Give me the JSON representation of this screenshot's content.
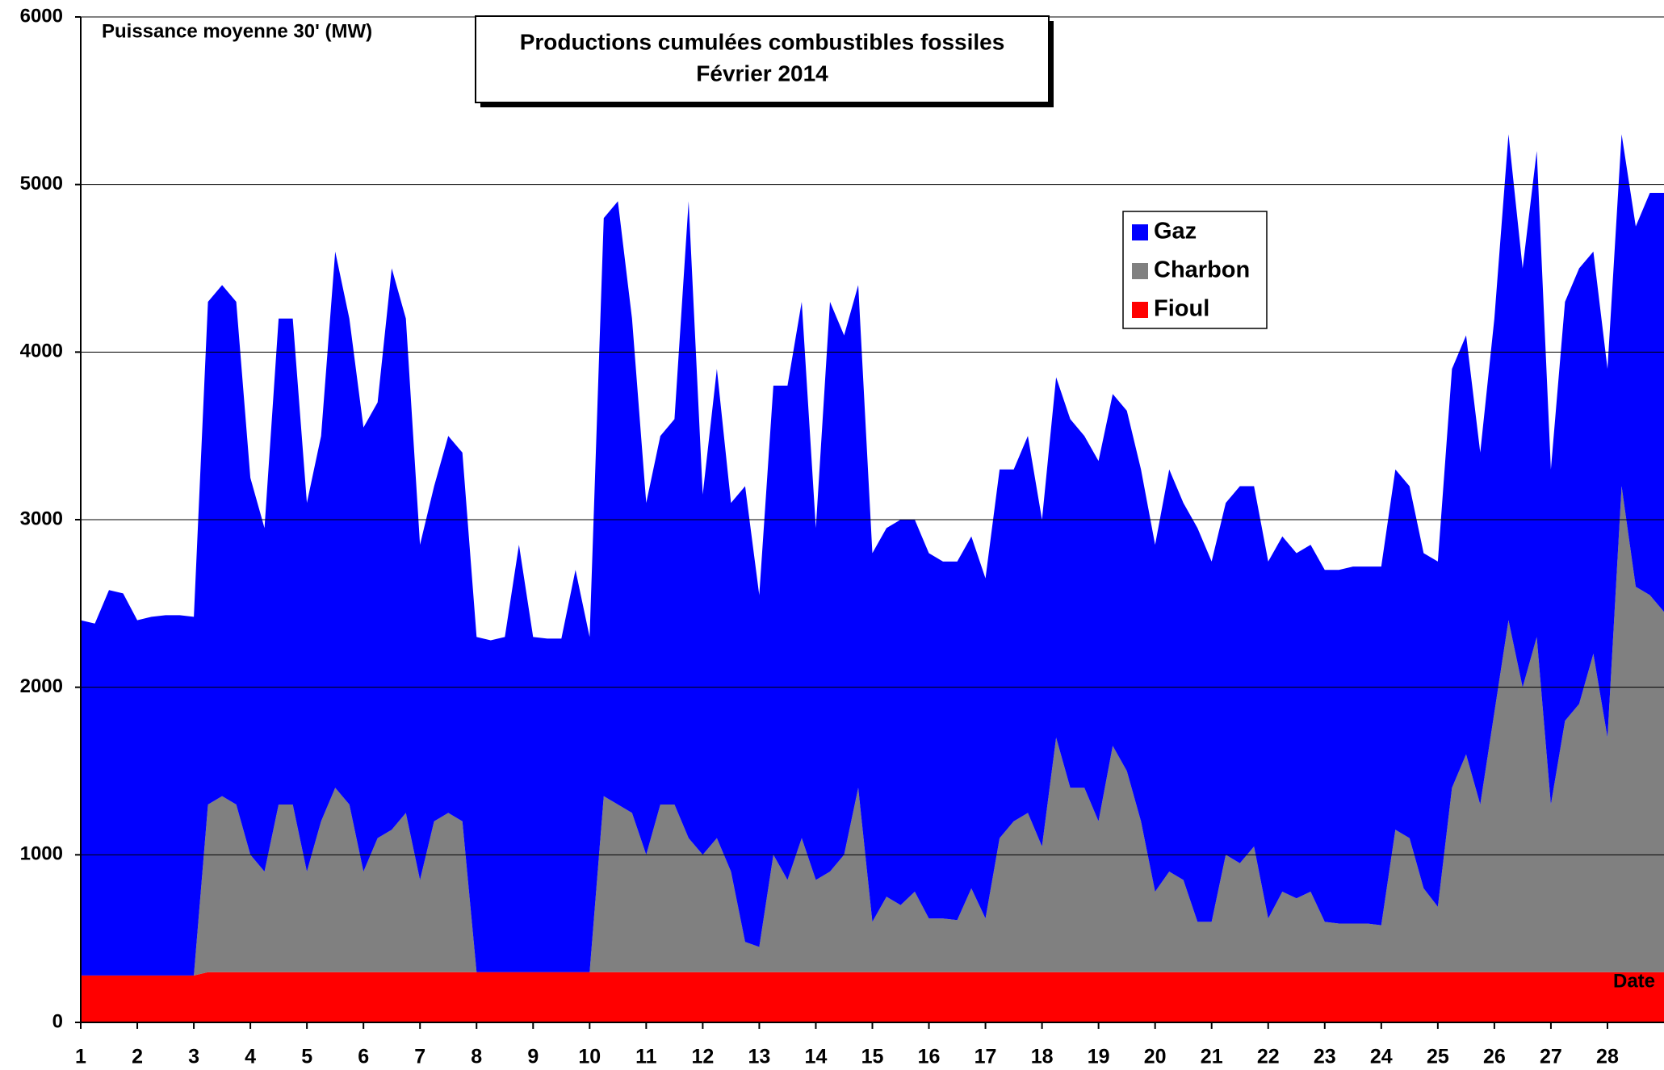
{
  "chart_data": {
    "type": "stacked-area",
    "title": "Productions cumulées combustibles fossiles",
    "subtitle": "Février 2014",
    "y_label": "Puissance moyenne 30' (MW)",
    "x_label": "Date",
    "x": [
      1,
      1.25,
      1.5,
      1.75,
      2,
      2.25,
      2.5,
      2.75,
      3,
      3.25,
      3.5,
      3.75,
      4,
      4.25,
      4.5,
      4.75,
      5,
      5.25,
      5.5,
      5.75,
      6,
      6.25,
      6.5,
      6.75,
      7,
      7.25,
      7.5,
      7.75,
      8,
      8.25,
      8.5,
      8.75,
      9,
      9.25,
      9.5,
      9.75,
      10,
      10.25,
      10.5,
      10.75,
      11,
      11.25,
      11.5,
      11.75,
      12,
      12.25,
      12.5,
      12.75,
      13,
      13.25,
      13.5,
      13.75,
      14,
      14.25,
      14.5,
      14.75,
      15,
      15.25,
      15.5,
      15.75,
      16,
      16.25,
      16.5,
      16.75,
      17,
      17.25,
      17.5,
      17.75,
      18,
      18.25,
      18.5,
      18.75,
      19,
      19.25,
      19.5,
      19.75,
      20,
      20.25,
      20.5,
      20.75,
      21,
      21.25,
      21.5,
      21.75,
      22,
      22.25,
      22.5,
      22.75,
      23,
      23.25,
      23.5,
      23.75,
      24,
      24.25,
      24.5,
      24.75,
      25,
      25.25,
      25.5,
      25.75,
      26,
      26.25,
      26.5,
      26.75,
      27,
      27.25,
      27.5,
      27.75,
      28,
      28.25,
      28.5,
      28.75,
      29
    ],
    "series": [
      {
        "name": "Gaz",
        "color": "#0000ff",
        "values": [
          2120,
          2100,
          2300,
          2280,
          2120,
          2140,
          2150,
          2150,
          2140,
          3000,
          3050,
          3000,
          2250,
          2050,
          2900,
          2900,
          2200,
          2300,
          3200,
          2900,
          2650,
          2600,
          3350,
          2950,
          2000,
          2000,
          2250,
          2200,
          2000,
          1980,
          2000,
          2550,
          2000,
          1990,
          1990,
          2400,
          2000,
          3450,
          3600,
          2950,
          2100,
          2200,
          2300,
          3800,
          2150,
          2800,
          2200,
          2720,
          2100,
          2800,
          2950,
          3200,
          2100,
          3400,
          3100,
          3000,
          2200,
          2200,
          2300,
          2220,
          2180,
          2130,
          2140,
          2100,
          2030,
          2200,
          2100,
          2250,
          1950,
          2150,
          2200,
          2100,
          2150,
          2100,
          2150,
          2100,
          2070,
          2400,
          2250,
          2350,
          2150,
          2100,
          2250,
          2150,
          2130,
          2120,
          2060,
          2070,
          2100,
          2110,
          2130,
          2130,
          2140,
          2150,
          2100,
          2000,
          2060,
          2500,
          2500,
          2100,
          2350,
          2900,
          2500,
          2900,
          2000,
          2500,
          2600,
          2400,
          2200,
          2100,
          2150,
          2400,
          2500
        ]
      },
      {
        "name": "Charbon",
        "color": "#808080",
        "values": [
          0,
          0,
          0,
          0,
          0,
          0,
          0,
          0,
          0,
          1000,
          1050,
          1000,
          700,
          600,
          1000,
          1000,
          600,
          900,
          1100,
          1000,
          600,
          800,
          850,
          950,
          550,
          900,
          950,
          900,
          0,
          0,
          0,
          0,
          0,
          0,
          0,
          0,
          0,
          1050,
          1000,
          950,
          700,
          1000,
          1000,
          800,
          700,
          800,
          600,
          180,
          150,
          700,
          550,
          800,
          550,
          600,
          700,
          1100,
          300,
          450,
          400,
          480,
          320,
          320,
          310,
          500,
          320,
          800,
          900,
          950,
          750,
          1400,
          1100,
          1100,
          900,
          1350,
          1200,
          900,
          480,
          600,
          550,
          300,
          300,
          700,
          650,
          750,
          320,
          480,
          440,
          480,
          300,
          290,
          290,
          290,
          280,
          850,
          800,
          500,
          390,
          1100,
          1300,
          1000,
          1550,
          2100,
          1700,
          2000,
          1000,
          1500,
          1600,
          1900,
          1400,
          2900,
          2300,
          2250,
          2150
        ]
      },
      {
        "name": "Fioul",
        "color": "#ff0000",
        "values": [
          280,
          280,
          280,
          280,
          280,
          280,
          280,
          280,
          280,
          300,
          300,
          300,
          300,
          300,
          300,
          300,
          300,
          300,
          300,
          300,
          300,
          300,
          300,
          300,
          300,
          300,
          300,
          300,
          300,
          300,
          300,
          300,
          300,
          300,
          300,
          300,
          300,
          300,
          300,
          300,
          300,
          300,
          300,
          300,
          300,
          300,
          300,
          300,
          300,
          300,
          300,
          300,
          300,
          300,
          300,
          300,
          300,
          300,
          300,
          300,
          300,
          300,
          300,
          300,
          300,
          300,
          300,
          300,
          300,
          300,
          300,
          300,
          300,
          300,
          300,
          300,
          300,
          300,
          300,
          300,
          300,
          300,
          300,
          300,
          300,
          300,
          300,
          300,
          300,
          300,
          300,
          300,
          300,
          300,
          300,
          300,
          300,
          300,
          300,
          300,
          300,
          300,
          300,
          300,
          300,
          300,
          300,
          300,
          300,
          300,
          300,
          300,
          300
        ]
      }
    ],
    "xlim": [
      1,
      29
    ],
    "xticks": [
      1,
      2,
      3,
      4,
      5,
      6,
      7,
      8,
      9,
      10,
      11,
      12,
      13,
      14,
      15,
      16,
      17,
      18,
      19,
      20,
      21,
      22,
      23,
      24,
      25,
      26,
      27,
      28
    ],
    "ylim": [
      0,
      6000
    ],
    "yticks": [
      0,
      1000,
      2000,
      3000,
      4000,
      5000,
      6000
    ],
    "grid": true
  }
}
